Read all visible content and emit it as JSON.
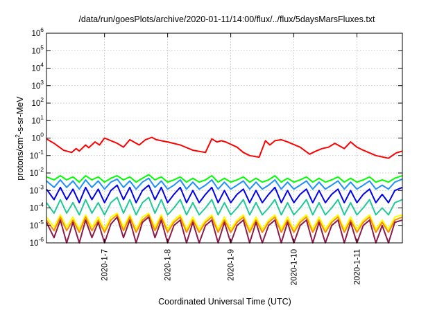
{
  "chart_data": {
    "type": "line",
    "title": "/data/run/goesPlots/archive/2020-01-11/14:00/flux/../flux/5daysMarsFluxes.txt",
    "xlabel": "Coordinated Universal Time (UTC)",
    "ylabel": {
      "pre": "protons/cm",
      "sup": "2",
      "post": "-s-sr-MeV"
    },
    "x_ticks": [
      "2020-1-7",
      "2020-1-8",
      "2020-1-9",
      "2020-1-10",
      "2020-1-11"
    ],
    "xlim_days": [
      6.08,
      11.72
    ],
    "y_scale": "log",
    "y_tick_exponents": [
      -6,
      -5,
      -4,
      -3,
      -2,
      -1,
      0,
      1,
      2,
      3,
      4,
      5,
      6
    ],
    "y_tick_base": "10",
    "ylim": [
      1e-06,
      1000000.0
    ],
    "grid": true,
    "series": [
      {
        "color": "#ff0000",
        "x": [
          6.08,
          6.2,
          6.35,
          6.48,
          6.55,
          6.6,
          6.7,
          6.75,
          6.85,
          6.92,
          7.0,
          7.2,
          7.3,
          7.4,
          7.55,
          7.65,
          7.75,
          7.82,
          7.9,
          8.0,
          8.2,
          8.4,
          8.6,
          8.7,
          8.78,
          8.85,
          8.92,
          9.1,
          9.2,
          9.3,
          9.45,
          9.55,
          9.62,
          9.7,
          9.8,
          9.9,
          10.1,
          10.25,
          10.35,
          10.45,
          10.55,
          10.65,
          10.8,
          10.9,
          11.0,
          11.1,
          11.3,
          11.5,
          11.62,
          11.72
        ],
        "values": [
          0.9,
          0.5,
          0.2,
          0.15,
          0.25,
          0.18,
          0.4,
          0.28,
          0.6,
          0.4,
          1.0,
          0.5,
          0.3,
          0.8,
          0.4,
          0.8,
          1.1,
          0.8,
          0.7,
          0.6,
          0.4,
          0.2,
          0.15,
          0.9,
          0.6,
          0.7,
          0.6,
          0.3,
          0.15,
          0.1,
          0.08,
          0.7,
          0.4,
          0.7,
          0.8,
          0.6,
          0.3,
          0.12,
          0.18,
          0.25,
          0.3,
          0.5,
          0.25,
          0.6,
          0.3,
          0.2,
          0.1,
          0.07,
          0.14,
          0.18
        ]
      },
      {
        "color": "#00ff00",
        "x": [
          6.08,
          6.2,
          6.3,
          6.4,
          6.5,
          6.6,
          6.7,
          6.8,
          6.9,
          7.0,
          7.1,
          7.2,
          7.3,
          7.4,
          7.5,
          7.6,
          7.7,
          7.8,
          7.9,
          8.0,
          8.1,
          8.2,
          8.3,
          8.4,
          8.5,
          8.6,
          8.7,
          8.8,
          8.9,
          9.0,
          9.1,
          9.2,
          9.3,
          9.4,
          9.5,
          9.6,
          9.7,
          9.8,
          9.9,
          10.0,
          10.1,
          10.2,
          10.3,
          10.4,
          10.5,
          10.6,
          10.7,
          10.8,
          10.9,
          11.0,
          11.1,
          11.2,
          11.3,
          11.4,
          11.5,
          11.6,
          11.72
        ],
        "values": [
          0.006,
          0.004,
          0.007,
          0.004,
          0.006,
          0.003,
          0.007,
          0.004,
          0.006,
          0.003,
          0.005,
          0.007,
          0.004,
          0.006,
          0.003,
          0.005,
          0.008,
          0.004,
          0.006,
          0.003,
          0.004,
          0.006,
          0.003,
          0.005,
          0.003,
          0.004,
          0.007,
          0.003,
          0.005,
          0.003,
          0.004,
          0.006,
          0.003,
          0.005,
          0.003,
          0.004,
          0.007,
          0.003,
          0.005,
          0.003,
          0.004,
          0.006,
          0.003,
          0.005,
          0.003,
          0.004,
          0.006,
          0.003,
          0.005,
          0.003,
          0.004,
          0.006,
          0.003,
          0.004,
          0.003,
          0.005,
          0.007
        ]
      },
      {
        "color": "#1e90ff",
        "x": [
          6.08,
          6.2,
          6.3,
          6.4,
          6.5,
          6.6,
          6.7,
          6.8,
          6.9,
          7.0,
          7.1,
          7.2,
          7.3,
          7.4,
          7.5,
          7.6,
          7.7,
          7.8,
          7.9,
          8.0,
          8.1,
          8.2,
          8.3,
          8.4,
          8.5,
          8.6,
          8.7,
          8.8,
          8.9,
          9.0,
          9.1,
          9.2,
          9.3,
          9.4,
          9.5,
          9.6,
          9.7,
          9.8,
          9.9,
          10.0,
          10.1,
          10.2,
          10.3,
          10.4,
          10.5,
          10.6,
          10.7,
          10.8,
          10.9,
          11.0,
          11.1,
          11.2,
          11.3,
          11.4,
          11.5,
          11.6,
          11.72
        ],
        "values": [
          0.0035,
          0.0015,
          0.004,
          0.0015,
          0.0035,
          0.0012,
          0.004,
          0.0015,
          0.0035,
          0.0012,
          0.003,
          0.0045,
          0.0015,
          0.0035,
          0.0012,
          0.003,
          0.005,
          0.0015,
          0.0035,
          0.0012,
          0.002,
          0.004,
          0.0012,
          0.003,
          0.0012,
          0.002,
          0.004,
          0.0012,
          0.003,
          0.0012,
          0.002,
          0.0035,
          0.0012,
          0.003,
          0.0012,
          0.002,
          0.004,
          0.0012,
          0.003,
          0.0012,
          0.002,
          0.0035,
          0.0012,
          0.003,
          0.0012,
          0.002,
          0.0035,
          0.0012,
          0.003,
          0.0012,
          0.002,
          0.0035,
          0.0012,
          0.002,
          0.0012,
          0.003,
          0.0045
        ]
      },
      {
        "color": "#0000ee",
        "x": [
          6.08,
          6.2,
          6.3,
          6.4,
          6.5,
          6.6,
          6.7,
          6.8,
          6.9,
          7.0,
          7.1,
          7.2,
          7.3,
          7.4,
          7.5,
          7.6,
          7.7,
          7.8,
          7.9,
          8.0,
          8.1,
          8.2,
          8.3,
          8.4,
          8.5,
          8.6,
          8.7,
          8.8,
          8.9,
          9.0,
          9.1,
          9.2,
          9.3,
          9.4,
          9.5,
          9.6,
          9.7,
          9.8,
          9.9,
          10.0,
          10.1,
          10.2,
          10.3,
          10.4,
          10.5,
          10.6,
          10.7,
          10.8,
          10.9,
          11.0,
          11.1,
          11.2,
          11.3,
          11.4,
          11.5,
          11.6,
          11.72
        ],
        "values": [
          0.0012,
          0.0003,
          0.0015,
          0.0003,
          0.0012,
          0.0002,
          0.0015,
          0.0003,
          0.0012,
          0.0002,
          0.001,
          0.002,
          0.0003,
          0.0015,
          0.0002,
          0.001,
          0.002,
          0.0003,
          0.0015,
          0.0002,
          0.0006,
          0.0015,
          0.0002,
          0.001,
          0.0002,
          0.0006,
          0.0015,
          0.0002,
          0.001,
          0.0002,
          0.0006,
          0.0012,
          0.0002,
          0.001,
          0.0002,
          0.0006,
          0.0015,
          0.0002,
          0.001,
          0.0002,
          0.0006,
          0.0012,
          0.0002,
          0.001,
          0.0002,
          0.0006,
          0.0012,
          0.0002,
          0.001,
          0.0002,
          0.0006,
          0.0012,
          0.0002,
          0.0006,
          0.0002,
          0.001,
          0.0015
        ]
      },
      {
        "color": "#20c997",
        "x": [
          6.08,
          6.2,
          6.3,
          6.4,
          6.5,
          6.6,
          6.7,
          6.8,
          6.9,
          7.0,
          7.1,
          7.2,
          7.3,
          7.4,
          7.5,
          7.6,
          7.7,
          7.8,
          7.9,
          8.0,
          8.1,
          8.2,
          8.3,
          8.4,
          8.5,
          8.6,
          8.7,
          8.8,
          8.9,
          9.0,
          9.1,
          9.2,
          9.3,
          9.4,
          9.5,
          9.6,
          9.7,
          9.8,
          9.9,
          10.0,
          10.1,
          10.2,
          10.3,
          10.4,
          10.5,
          10.6,
          10.7,
          10.8,
          10.9,
          11.0,
          11.1,
          11.2,
          11.3,
          11.4,
          11.5,
          11.6,
          11.72
        ],
        "values": [
          0.0002,
          5e-05,
          0.0003,
          5e-05,
          0.0002,
          4e-05,
          0.0003,
          5e-05,
          0.0002,
          4e-05,
          0.0002,
          0.0004,
          5e-05,
          0.0003,
          4e-05,
          0.0002,
          0.0004,
          5e-05,
          0.0003,
          4e-05,
          0.0001,
          0.0003,
          4e-05,
          0.0002,
          4e-05,
          0.0001,
          0.0003,
          4e-05,
          0.0002,
          4e-05,
          0.0001,
          0.0003,
          4e-05,
          0.0002,
          4e-05,
          0.0001,
          0.0003,
          4e-05,
          0.0002,
          4e-05,
          0.0001,
          0.0003,
          4e-05,
          0.0002,
          4e-05,
          0.0001,
          0.0003,
          4e-05,
          0.0002,
          4e-05,
          0.0001,
          0.0003,
          4e-05,
          0.0001,
          4e-05,
          0.0002,
          0.0003
        ]
      },
      {
        "color": "#ffff00",
        "x": [
          6.08,
          6.2,
          6.3,
          6.4,
          6.5,
          6.6,
          6.7,
          6.8,
          6.9,
          7.0,
          7.1,
          7.2,
          7.3,
          7.4,
          7.5,
          7.6,
          7.7,
          7.8,
          7.9,
          8.0,
          8.1,
          8.2,
          8.3,
          8.4,
          8.5,
          8.6,
          8.7,
          8.8,
          8.9,
          9.0,
          9.1,
          9.2,
          9.3,
          9.4,
          9.5,
          9.6,
          9.7,
          9.8,
          9.9,
          10.0,
          10.1,
          10.2,
          10.3,
          10.4,
          10.5,
          10.6,
          10.7,
          10.8,
          10.9,
          11.0,
          11.1,
          11.2,
          11.3,
          11.4,
          11.5,
          11.6,
          11.72
        ],
        "values": [
          3e-05,
          8e-06,
          4e-05,
          8e-06,
          3e-05,
          6e-06,
          4e-05,
          8e-06,
          3e-05,
          6e-06,
          3e-05,
          5e-05,
          8e-06,
          4e-05,
          6e-06,
          3e-05,
          5e-05,
          8e-06,
          4e-05,
          6e-06,
          2e-05,
          4e-05,
          6e-06,
          3e-05,
          6e-06,
          2e-05,
          4e-05,
          6e-06,
          3e-05,
          6e-06,
          2e-05,
          4e-05,
          6e-06,
          3e-05,
          6e-06,
          2e-05,
          4e-05,
          6e-06,
          3e-05,
          6e-06,
          2e-05,
          4e-05,
          6e-06,
          3e-05,
          6e-06,
          2e-05,
          4e-05,
          6e-06,
          3e-05,
          6e-06,
          2e-05,
          4e-05,
          6e-06,
          2e-05,
          6e-06,
          3e-05,
          4e-05
        ]
      },
      {
        "color": "#ff8c00",
        "x": [
          6.08,
          6.2,
          6.3,
          6.4,
          6.5,
          6.6,
          6.7,
          6.8,
          6.9,
          7.0,
          7.1,
          7.2,
          7.3,
          7.4,
          7.5,
          7.6,
          7.7,
          7.8,
          7.9,
          8.0,
          8.1,
          8.2,
          8.3,
          8.4,
          8.5,
          8.6,
          8.7,
          8.8,
          8.9,
          9.0,
          9.1,
          9.2,
          9.3,
          9.4,
          9.5,
          9.6,
          9.7,
          9.8,
          9.9,
          10.0,
          10.1,
          10.2,
          10.3,
          10.4,
          10.5,
          10.6,
          10.7,
          10.8,
          10.9,
          11.0,
          11.1,
          11.2,
          11.3,
          11.4,
          11.5,
          11.6,
          11.72
        ],
        "values": [
          2e-05,
          5e-06,
          3e-05,
          5e-06,
          2e-05,
          4e-06,
          3e-05,
          5e-06,
          2e-05,
          4e-06,
          2e-05,
          4e-05,
          5e-06,
          3e-05,
          4e-06,
          2e-05,
          4e-05,
          5e-06,
          3e-05,
          4e-06,
          1.5e-05,
          3e-05,
          4e-06,
          2e-05,
          4e-06,
          1.5e-05,
          3e-05,
          4e-06,
          2e-05,
          4e-06,
          1.5e-05,
          3e-05,
          4e-06,
          2e-05,
          4e-06,
          1.5e-05,
          3e-05,
          4e-06,
          2e-05,
          4e-06,
          1.5e-05,
          3e-05,
          4e-06,
          2e-05,
          4e-06,
          1.5e-05,
          3e-05,
          4e-06,
          2e-05,
          4e-06,
          1.5e-05,
          3e-05,
          4e-06,
          1.5e-05,
          4e-06,
          2e-05,
          3e-05
        ]
      },
      {
        "color": "#8b1a4a",
        "x": [
          6.08,
          6.2,
          6.3,
          6.4,
          6.5,
          6.6,
          6.7,
          6.8,
          6.9,
          7.0,
          7.1,
          7.2,
          7.3,
          7.4,
          7.5,
          7.6,
          7.7,
          7.8,
          7.9,
          8.0,
          8.1,
          8.2,
          8.3,
          8.4,
          8.5,
          8.6,
          8.7,
          8.8,
          8.9,
          9.0,
          9.1,
          9.2,
          9.3,
          9.4,
          9.5,
          9.6,
          9.7,
          9.8,
          9.9,
          10.0,
          10.1,
          10.2,
          10.3,
          10.4,
          10.5,
          10.6,
          10.7,
          10.8,
          10.9,
          11.0,
          11.1,
          11.2,
          11.3,
          11.4,
          11.5,
          11.6,
          11.72
        ],
        "values": [
          1.5e-05,
          2e-06,
          2e-05,
          1e-06,
          1.5e-05,
          1e-06,
          2e-05,
          2e-06,
          1.5e-05,
          1e-06,
          1.2e-05,
          3e-05,
          2e-06,
          2e-05,
          1e-06,
          1.5e-05,
          3e-05,
          2e-06,
          2e-05,
          1e-06,
          1e-05,
          2e-05,
          1e-06,
          1.5e-05,
          1e-06,
          1e-05,
          2e-05,
          1e-06,
          1.5e-05,
          1e-06,
          1e-05,
          2e-05,
          1e-06,
          1.5e-05,
          1e-06,
          1e-05,
          2e-05,
          1e-06,
          1.5e-05,
          1e-06,
          1e-05,
          2e-05,
          1e-06,
          1.5e-05,
          1e-06,
          1e-05,
          2e-05,
          1e-06,
          1.5e-05,
          1e-06,
          1e-05,
          2e-05,
          1e-06,
          1e-05,
          1e-06,
          1.5e-05,
          2e-05
        ]
      }
    ]
  }
}
